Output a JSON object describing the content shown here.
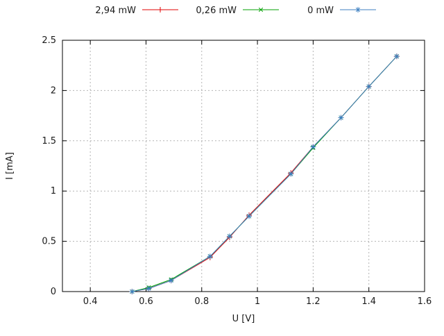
{
  "chart_data": {
    "type": "line",
    "title": "",
    "xlabel": "U [V]",
    "ylabel": "I [mA]",
    "xlim": [
      0.3,
      1.6
    ],
    "ylim": [
      0,
      2.5
    ],
    "grid": true,
    "legend_position": "top-center",
    "xticks": {
      "values": [
        0.4,
        0.6,
        0.8,
        1.0,
        1.2,
        1.4,
        1.6
      ],
      "labels": [
        "0.4",
        "0.6",
        "0.8",
        "1",
        "1.2",
        "1.4",
        "1.6"
      ]
    },
    "yticks": {
      "values": [
        0,
        0.5,
        1.0,
        1.5,
        2.0,
        2.5
      ],
      "labels": [
        "0",
        "0.5",
        "1",
        "1.5",
        "2",
        "2.5"
      ]
    },
    "x": [
      0.55,
      0.61,
      0.69,
      0.83,
      0.9,
      0.97,
      1.12,
      1.2,
      1.3,
      1.4,
      1.5
    ],
    "series": [
      {
        "name": "2,94 mW",
        "color": "#e00000",
        "marker": "plus",
        "values": [
          0.0,
          0.03,
          0.11,
          0.34,
          0.54,
          0.76,
          1.18,
          1.44,
          1.73,
          2.04,
          2.34
        ]
      },
      {
        "name": "0,26 mW",
        "color": "#00a000",
        "marker": "x",
        "values": [
          0.0,
          0.04,
          0.12,
          0.35,
          0.55,
          0.75,
          1.17,
          1.43,
          1.73,
          2.04,
          2.34
        ]
      },
      {
        "name": "0 mW",
        "color": "#3d7fc1",
        "marker": "asterisk",
        "values": [
          0.0,
          0.03,
          0.11,
          0.35,
          0.55,
          0.75,
          1.17,
          1.44,
          1.73,
          2.04,
          2.34
        ]
      }
    ]
  },
  "style": {
    "background": "#ffffff",
    "grid_color": "#b4b4b4",
    "axis_color": "#000000",
    "text_color": "#1a1a1a"
  }
}
